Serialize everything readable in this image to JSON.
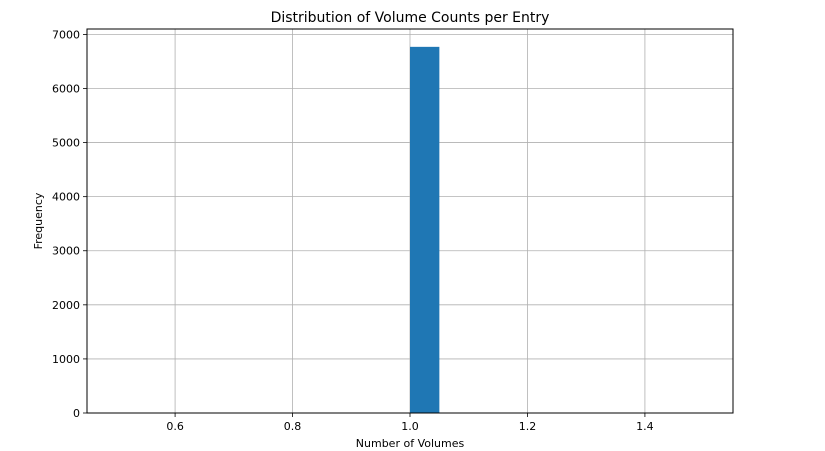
{
  "chart_data": {
    "type": "bar",
    "title": "Distribution of Volume Counts per Entry",
    "xlabel": "Number of Volumes",
    "ylabel": "Frequency",
    "xlim": [
      0.45,
      1.55
    ],
    "ylim": [
      0,
      7100
    ],
    "xticks": [
      0.6,
      0.8,
      1.0,
      1.2,
      1.4
    ],
    "xtick_labels": [
      "0.6",
      "0.8",
      "1.0",
      "1.2",
      "1.4"
    ],
    "yticks": [
      0,
      1000,
      2000,
      3000,
      4000,
      5000,
      6000,
      7000
    ],
    "ytick_labels": [
      "0",
      "1000",
      "2000",
      "3000",
      "4000",
      "5000",
      "6000",
      "7000"
    ],
    "grid": true,
    "bins": [
      {
        "x0": 1.0,
        "x1": 1.05,
        "value": 6770
      }
    ],
    "bar_color": "#1f77b4"
  }
}
